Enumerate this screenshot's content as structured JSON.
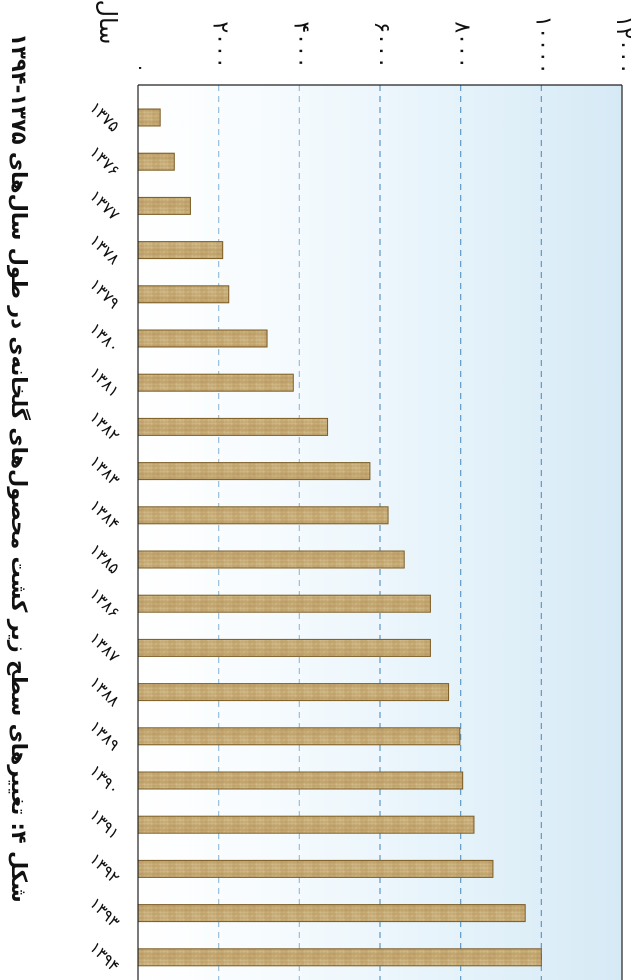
{
  "chart_data": {
    "type": "bar",
    "orientation": "horizontal",
    "title": "شکل ۴: تغییرهای سطح زیر کشت محصول‌های گلخانه‌ی در طول سال‌های ۱۳۷۵-۱۳۹۴",
    "ylabel": "سال",
    "categories": [
      "۱۳۷۵",
      "۱۳۷۶",
      "۱۳۷۷",
      "۱۳۷۸",
      "۱۳۷۹",
      "۱۳۸۰",
      "۱۳۸۱",
      "۱۳۸۲",
      "۱۳۸۳",
      "۱۳۸۴",
      "۱۳۸۵",
      "۱۳۸۶",
      "۱۳۸۷",
      "۱۳۸۸",
      "۱۳۸۹",
      "۱۳۹۰",
      "۱۳۹۱",
      "۱۳۹۲",
      "۱۳۹۳",
      "۱۳۹۴"
    ],
    "values": [
      550,
      900,
      1300,
      2100,
      2250,
      3200,
      3850,
      4700,
      5750,
      6200,
      6600,
      7250,
      7250,
      7700,
      7980,
      8050,
      8330,
      8800,
      9600,
      10000
    ],
    "xlim": [
      0,
      12000
    ],
    "x_ticks": [
      0,
      2000,
      4000,
      6000,
      8000,
      10000,
      12000
    ],
    "x_tick_labels": [
      "۰",
      "۲۰۰۰",
      "۴۰۰۰",
      "۶۰۰۰",
      "۸۰۰۰",
      "۱۰۰۰۰",
      "۱۲۰۰۰"
    ],
    "grid": "dashed vertical lines",
    "colors": {
      "bar_fill": "#c9ae79",
      "bar_stroke": "#7b5c24",
      "grid": "#8ab6d8",
      "background_left": "#ffffff",
      "background_right": "#d8ebf4"
    }
  }
}
